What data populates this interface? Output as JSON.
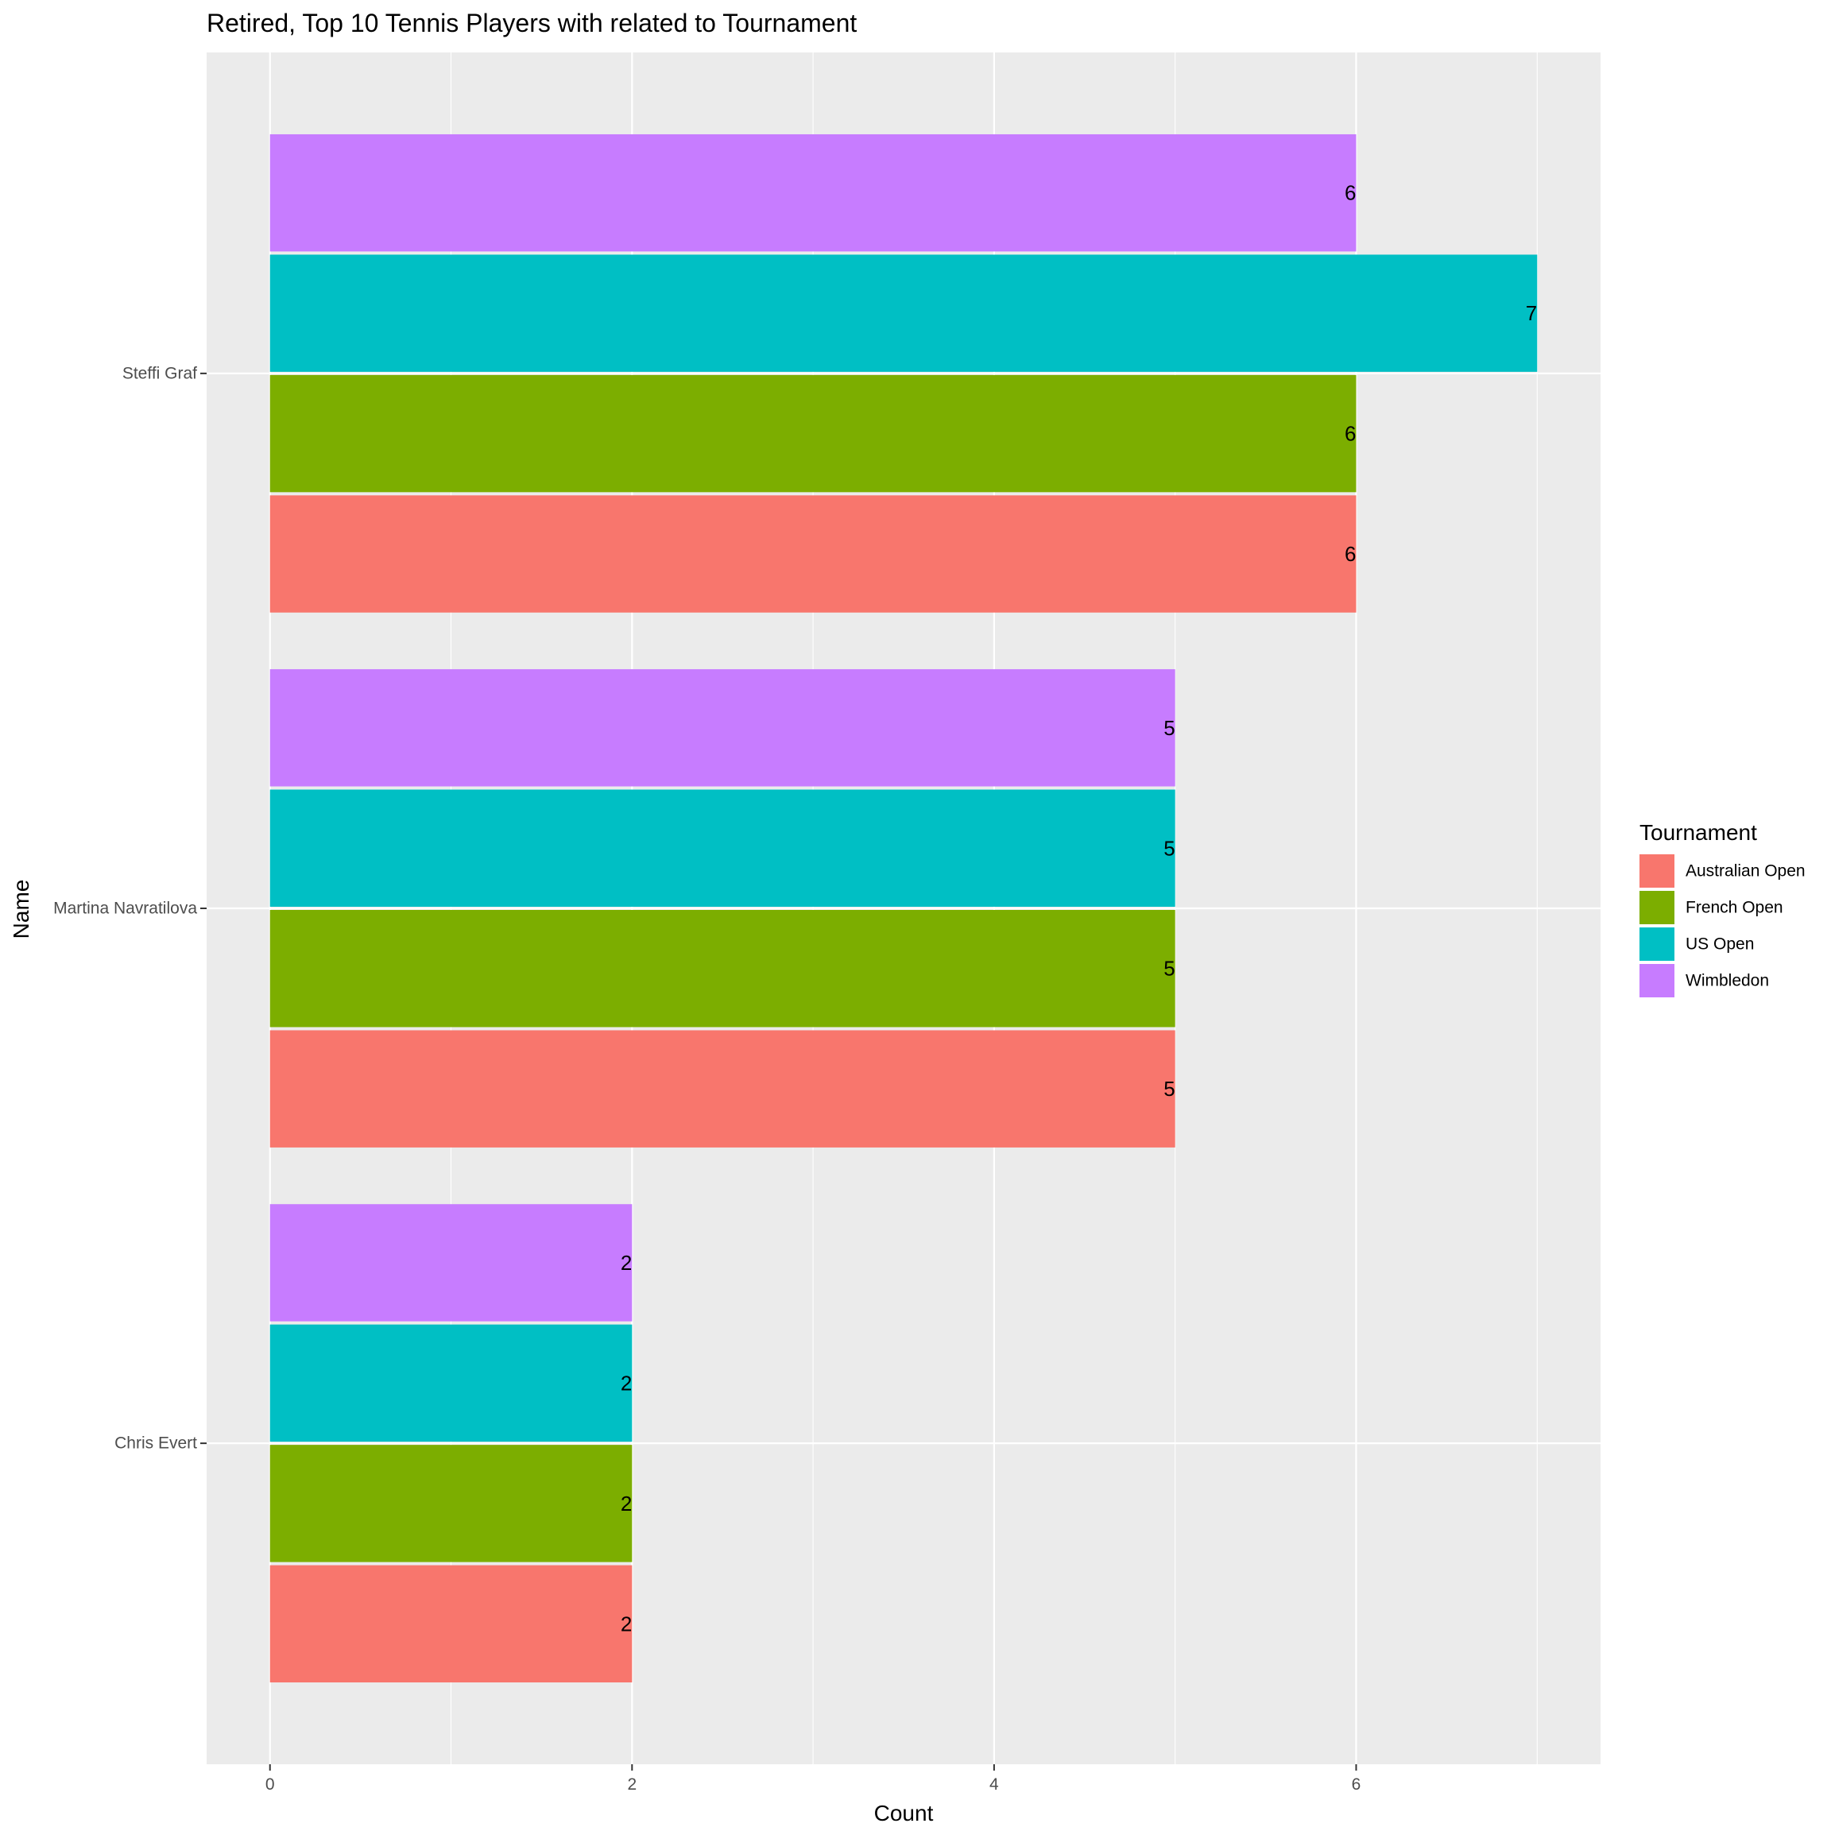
{
  "chart_data": {
    "type": "bar",
    "orientation": "horizontal",
    "title": "Retired, Top 10 Tennis Players with related to Tournament",
    "xlabel": "Count",
    "ylabel": "Name",
    "xlim": [
      -0.35,
      7.35
    ],
    "x_ticks": [
      "0",
      "2",
      "4",
      "6"
    ],
    "categories": [
      "Chris Evert",
      "Martina Navratilova",
      "Steffi Graf"
    ],
    "series": [
      {
        "name": "Australian Open",
        "color": "#F8766D",
        "values": [
          2,
          5,
          6
        ]
      },
      {
        "name": "French Open",
        "color": "#7CAE00",
        "values": [
          2,
          5,
          6
        ]
      },
      {
        "name": "US Open",
        "color": "#00BFC4",
        "values": [
          2,
          5,
          7
        ]
      },
      {
        "name": "Wimbledon",
        "color": "#C77CFF",
        "values": [
          2,
          5,
          6
        ]
      }
    ],
    "data_labels": true,
    "legend": {
      "title": "Tournament",
      "position": "right"
    },
    "grid": true,
    "panel_background": "#EBEBEB"
  }
}
